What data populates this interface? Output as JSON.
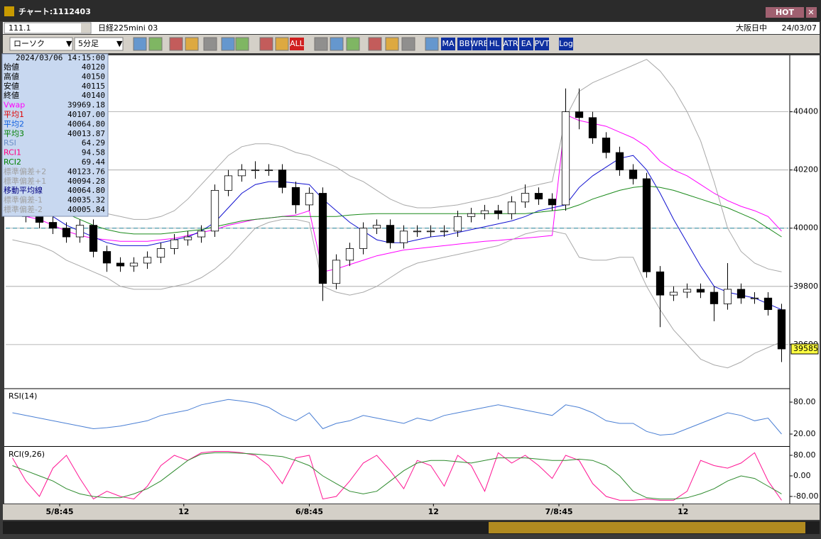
{
  "window": {
    "title": "チャート:1112403",
    "hot": "HOT",
    "code": "111.1",
    "instrument": "日経225mini 03",
    "session": "大阪日中",
    "date": "24/03/07",
    "chart_style": "ローソク",
    "interval": "5分足",
    "buttons": [
      "ALL",
      "MA",
      "BB",
      "WRE",
      "HL",
      "ATR",
      "EA",
      "PVT",
      "Log"
    ]
  },
  "info": {
    "timestamp": "2024/03/06  14:15:00",
    "rows": [
      {
        "label": "始値",
        "value": "40120",
        "color": "#000000"
      },
      {
        "label": "高値",
        "value": "40150",
        "color": "#000000"
      },
      {
        "label": "安値",
        "value": "40115",
        "color": "#000000"
      },
      {
        "label": "終値",
        "value": "40140",
        "color": "#000000"
      },
      {
        "label": "Vwap",
        "value": "39969.18",
        "color": "#ff00ff"
      },
      {
        "label": "平均1",
        "value": "40107.00",
        "color": "#e00000"
      },
      {
        "label": "平均2",
        "value": "40064.80",
        "color": "#1060e0"
      },
      {
        "label": "平均3",
        "value": "40013.87",
        "color": "#008000"
      },
      {
        "label": "RSI",
        "value": "64.29",
        "color": "#6a8ec8"
      },
      {
        "label": "RCI1",
        "value": "94.58",
        "color": "#ff0080"
      },
      {
        "label": "RCI2",
        "value": "69.44",
        "color": "#008000"
      },
      {
        "label": "標準偏差+2",
        "value": "40123.76",
        "color": "#a0a0a0"
      },
      {
        "label": "標準偏差+1",
        "value": "40094.28",
        "color": "#a0a0a0"
      },
      {
        "label": "移動平均線",
        "value": "40064.80",
        "color": "#000080"
      },
      {
        "label": "標準偏差-1",
        "value": "40035.32",
        "color": "#a0a0a0"
      },
      {
        "label": "標準偏差-2",
        "value": "40005.84",
        "color": "#a0a0a0"
      }
    ]
  },
  "chart_data": [
    {
      "type": "candlestick",
      "open": [
        40070,
        40060,
        40040,
        40020,
        40000,
        39970,
        40010,
        39920,
        39880,
        39870,
        39880,
        39900,
        39930,
        39960,
        39970,
        39990,
        40130,
        40180,
        40200,
        40200,
        40200,
        40140,
        40080,
        40120,
        39810,
        39890,
        39930,
        40000,
        40010,
        39950,
        39990,
        39990,
        39990,
        39990,
        40040,
        40050,
        40060,
        40050,
        40090,
        40120,
        40100,
        40080,
        40400,
        40380,
        40310,
        40260,
        40200,
        40170,
        39850,
        39770,
        39780,
        39790,
        39780,
        39740,
        39790,
        39760,
        39760,
        39720
      ],
      "high": [
        40090,
        40080,
        40060,
        40040,
        40020,
        40030,
        40030,
        39940,
        39900,
        39900,
        39920,
        39950,
        39980,
        39990,
        40010,
        40150,
        40200,
        40220,
        40230,
        40220,
        40220,
        40160,
        40140,
        40140,
        39910,
        39950,
        40020,
        40030,
        40030,
        40010,
        40010,
        40010,
        40010,
        40060,
        40070,
        40080,
        40080,
        40110,
        40150,
        40140,
        40120,
        40480,
        40480,
        40400,
        40330,
        40280,
        40220,
        40190,
        39870,
        39800,
        39810,
        39810,
        39800,
        39880,
        39810,
        39780,
        39780,
        39740
      ],
      "low": [
        40040,
        40020,
        40000,
        39980,
        39950,
        39950,
        39900,
        39850,
        39850,
        39850,
        39860,
        39880,
        39910,
        39940,
        39950,
        39970,
        40110,
        40160,
        40170,
        40180,
        40120,
        40050,
        40060,
        39750,
        39790,
        39870,
        39910,
        39980,
        39930,
        39930,
        39970,
        39970,
        39970,
        39970,
        40020,
        40030,
        40030,
        40030,
        40070,
        40080,
        40060,
        40060,
        40340,
        40290,
        40240,
        40180,
        40150,
        39830,
        39660,
        39750,
        39760,
        39760,
        39680,
        39720,
        39740,
        39740,
        39700,
        39540
      ],
      "close": [
        40060,
        40040,
        40020,
        40000,
        39970,
        40010,
        39920,
        39880,
        39870,
        39880,
        39900,
        39930,
        39960,
        39970,
        39990,
        40130,
        40180,
        40200,
        40200,
        40200,
        40140,
        40080,
        40120,
        39810,
        39890,
        39930,
        40000,
        40010,
        39950,
        39990,
        39990,
        39990,
        39990,
        40040,
        40050,
        40060,
        40050,
        40090,
        40120,
        40100,
        40080,
        40400,
        40380,
        40310,
        40260,
        40200,
        40170,
        39850,
        39770,
        39780,
        39790,
        39780,
        39740,
        39790,
        39760,
        39760,
        39720,
        39585
      ],
      "up_color": "#ffffff",
      "down_color": "#000000",
      "series": [
        {
          "color": "#ff00ff",
          "values": [
            40050,
            40040,
            40030,
            40010,
            39990,
            39975,
            39965,
            39960,
            39955,
            39955,
            39955,
            39960,
            39965,
            39975,
            39985,
            39995,
            40010,
            40020,
            40030,
            40035,
            40040,
            40045,
            40060,
            39850,
            39860,
            39875,
            39890,
            39905,
            39915,
            39925,
            39930,
            39935,
            39940,
            39945,
            39950,
            39955,
            39958,
            39962,
            39966,
            39970,
            39975,
            40390,
            40370,
            40360,
            40350,
            40330,
            40310,
            40280,
            40230,
            40200,
            40180,
            40150,
            40120,
            40095,
            40075,
            40060,
            40040,
            39990
          ]
        },
        {
          "color": "#1010d0",
          "values": [
            40100,
            40080,
            40060,
            40040,
            40010,
            39990,
            39970,
            39950,
            39940,
            39940,
            39940,
            39950,
            39960,
            39970,
            39990,
            40020,
            40070,
            40120,
            40150,
            40160,
            40160,
            40155,
            40150,
            40100,
            40060,
            40020,
            39990,
            39960,
            39950,
            39950,
            39960,
            39970,
            39975,
            39985,
            39995,
            40005,
            40015,
            40025,
            40040,
            40060,
            40070,
            40080,
            40140,
            40180,
            40210,
            40240,
            40250,
            40200,
            40120,
            40030,
            39950,
            39870,
            39800,
            39780,
            39770,
            39760,
            39740,
            39720
          ]
        },
        {
          "color": "#1a8a1a",
          "values": [
            40110,
            40100,
            40090,
            40070,
            40050,
            40030,
            40010,
            39995,
            39985,
            39980,
            39980,
            39980,
            39985,
            39990,
            39995,
            40005,
            40015,
            40025,
            40030,
            40035,
            40040,
            40040,
            40040,
            40040,
            40040,
            40045,
            40048,
            40050,
            40050,
            40050,
            40050,
            40050,
            40050,
            40050,
            40050,
            40050,
            40050,
            40050,
            40050,
            40055,
            40060,
            40065,
            40080,
            40100,
            40115,
            40130,
            40140,
            40145,
            40140,
            40130,
            40115,
            40100,
            40085,
            40070,
            40050,
            40030,
            40000,
            39970
          ]
        },
        {
          "color": "#a8a8a8",
          "values": [
            40140,
            40130,
            40120,
            40110,
            40100,
            40080,
            40060,
            40050,
            40040,
            40030,
            40030,
            40040,
            40060,
            40100,
            40150,
            40200,
            40250,
            40280,
            40290,
            40290,
            40280,
            40260,
            40250,
            40230,
            40210,
            40180,
            40160,
            40130,
            40100,
            40080,
            40070,
            40070,
            40075,
            40080,
            40090,
            40100,
            40110,
            40125,
            40140,
            40150,
            40160,
            40380,
            40470,
            40500,
            40520,
            40540,
            40560,
            40580,
            40540,
            40480,
            40400,
            40300,
            40160,
            40000,
            39920,
            39880,
            39860,
            39850
          ]
        },
        {
          "color": "#a8a8a8",
          "values": [
            39960,
            39950,
            39940,
            39920,
            39890,
            39870,
            39850,
            39830,
            39800,
            39790,
            39790,
            39790,
            39800,
            39810,
            39830,
            39860,
            39900,
            39950,
            40000,
            40020,
            40030,
            40030,
            40020,
            39800,
            39780,
            39770,
            39780,
            39800,
            39830,
            39860,
            39880,
            39890,
            39900,
            39910,
            39920,
            39930,
            39940,
            39960,
            39980,
            39990,
            39990,
            39980,
            39900,
            39890,
            39890,
            39900,
            39900,
            39800,
            39720,
            39650,
            39600,
            39550,
            39530,
            39520,
            39540,
            39570,
            39590,
            39610
          ]
        }
      ],
      "xlim": [
        -0.5,
        57.5
      ],
      "ylim": [
        39451,
        40594
      ],
      "yticks": [
        39600,
        39800,
        40000,
        40200,
        40400
      ],
      "reference_line": 40000,
      "grid": true
    },
    {
      "type": "line",
      "title": "RSI(14)",
      "series": [
        {
          "color": "#4a7fd4",
          "values": [
            60,
            55,
            50,
            45,
            40,
            35,
            30,
            32,
            35,
            40,
            45,
            55,
            60,
            65,
            75,
            80,
            85,
            82,
            78,
            70,
            55,
            45,
            60,
            30,
            40,
            45,
            55,
            50,
            45,
            40,
            50,
            45,
            55,
            60,
            65,
            70,
            75,
            70,
            65,
            60,
            55,
            75,
            70,
            60,
            45,
            40,
            40,
            25,
            18,
            20,
            30,
            40,
            50,
            60,
            55,
            45,
            50,
            20
          ]
        }
      ],
      "xlim": [
        -0.5,
        57.5
      ],
      "ylim": [
        -1.3,
        104
      ],
      "yticks": [
        {
          "value": 20,
          "label": "20.00"
        },
        {
          "value": 80,
          "label": "80.00"
        }
      ]
    },
    {
      "type": "line",
      "title": "RCI(9,26)",
      "series": [
        {
          "color": "#ff1493",
          "values": [
            70,
            -20,
            -80,
            30,
            80,
            -10,
            -90,
            -60,
            -80,
            -90,
            -40,
            40,
            80,
            60,
            90,
            95,
            95,
            90,
            80,
            40,
            -30,
            70,
            80,
            -90,
            -80,
            -20,
            50,
            80,
            20,
            -50,
            60,
            40,
            -40,
            80,
            40,
            -60,
            90,
            50,
            80,
            40,
            -10,
            80,
            60,
            -30,
            -80,
            -95,
            -95,
            -90,
            -95,
            -95,
            -60,
            60,
            40,
            30,
            50,
            90,
            -20,
            -95
          ]
        },
        {
          "color": "#2e8b2e",
          "values": [
            40,
            20,
            0,
            -20,
            -50,
            -70,
            -80,
            -85,
            -85,
            -70,
            -50,
            -20,
            20,
            60,
            85,
            90,
            90,
            88,
            85,
            80,
            75,
            60,
            40,
            0,
            -30,
            -60,
            -70,
            -60,
            -20,
            20,
            50,
            60,
            60,
            55,
            50,
            60,
            70,
            70,
            70,
            65,
            60,
            60,
            65,
            60,
            40,
            0,
            -60,
            -85,
            -90,
            -90,
            -85,
            -70,
            -50,
            -20,
            0,
            -10,
            -40,
            -70
          ]
        }
      ],
      "xlim": [
        -0.5,
        57.5
      ],
      "ylim": [
        -107.6,
        110.3
      ],
      "yticks": [
        {
          "value": -80,
          "label": "-80.00"
        },
        {
          "value": 0,
          "label": "0.00"
        },
        {
          "value": 80,
          "label": "80.00"
        }
      ],
      "xticks": [
        {
          "value": 3.5,
          "label": "5/8:45"
        },
        {
          "value": 12.7,
          "label": "12"
        },
        {
          "value": 22,
          "label": "6/8:45"
        },
        {
          "value": 31.2,
          "label": "12"
        },
        {
          "value": 40.5,
          "label": "7/8:45"
        },
        {
          "value": 49.7,
          "label": "12"
        }
      ]
    }
  ]
}
